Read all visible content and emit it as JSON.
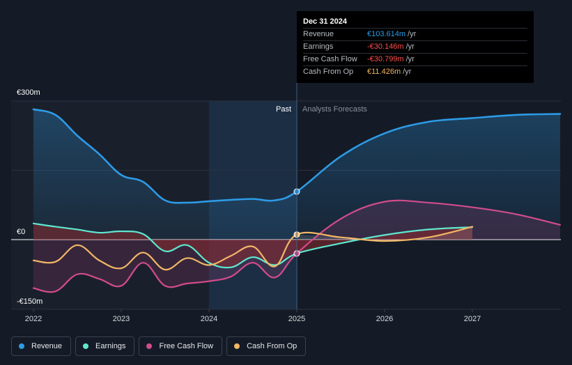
{
  "colors": {
    "background": "#151b26",
    "revenue": "#2d9be6",
    "earnings": "#5ee8cf",
    "fcf": "#d24c8c",
    "cfo": "#f2b766",
    "negative_fill": "#8b2a2d",
    "highlight": "#1e3d5c"
  },
  "tooltip": {
    "date": "Dec 31 2024",
    "rows": [
      {
        "name": "Revenue",
        "value": "€103.614m",
        "unit": "/yr",
        "color": "#2d9be6"
      },
      {
        "name": "Earnings",
        "value": "-€30.146m",
        "unit": "/yr",
        "color": "#ff4d4d"
      },
      {
        "name": "Free Cash Flow",
        "value": "-€30.799m",
        "unit": "/yr",
        "color": "#ff4d4d"
      },
      {
        "name": "Cash From Op",
        "value": "€11.426m",
        "unit": "/yr",
        "color": "#f2b766"
      }
    ]
  },
  "legend": [
    {
      "label": "Revenue",
      "color": "#2d9be6"
    },
    {
      "label": "Earnings",
      "color": "#5ee8cf"
    },
    {
      "label": "Free Cash Flow",
      "color": "#d24c8c"
    },
    {
      "label": "Cash From Op",
      "color": "#f2b766"
    }
  ],
  "chart_data": {
    "type": "line",
    "title": "",
    "unit": "€m",
    "y_ticks": [
      {
        "label": "€300m",
        "value": 300
      },
      {
        "label": "€0",
        "value": 0
      },
      {
        "label": "-€150m",
        "value": -150
      }
    ],
    "ylim": [
      -150,
      300
    ],
    "xlim": [
      2022,
      2028
    ],
    "x_ticks": [
      {
        "label": "2022",
        "value": 2022
      },
      {
        "label": "2023",
        "value": 2023
      },
      {
        "label": "2024",
        "value": 2024
      },
      {
        "label": "2025",
        "value": 2025
      },
      {
        "label": "2026",
        "value": 2026
      },
      {
        "label": "2027",
        "value": 2027
      }
    ],
    "divider_x": 2025,
    "highlight_range": [
      2024,
      2025
    ],
    "past_label": "Past",
    "forecast_label": "Analysts Forecasts",
    "series": [
      {
        "name": "Revenue",
        "key": "revenue",
        "marker_x": 2025,
        "points": [
          [
            2022,
            282
          ],
          [
            2022.25,
            270
          ],
          [
            2022.5,
            225
          ],
          [
            2022.75,
            185
          ],
          [
            2023,
            140
          ],
          [
            2023.25,
            125
          ],
          [
            2023.5,
            85
          ],
          [
            2023.75,
            80
          ],
          [
            2024,
            83
          ],
          [
            2024.25,
            86
          ],
          [
            2024.5,
            88
          ],
          [
            2024.75,
            85
          ],
          [
            2025,
            104
          ],
          [
            2025.5,
            180
          ],
          [
            2026,
            230
          ],
          [
            2026.5,
            255
          ],
          [
            2027,
            263
          ],
          [
            2027.5,
            270
          ],
          [
            2028,
            272
          ]
        ]
      },
      {
        "name": "Earnings",
        "key": "earnings",
        "marker_x": 2025,
        "points": [
          [
            2022,
            35
          ],
          [
            2022.25,
            28
          ],
          [
            2022.5,
            22
          ],
          [
            2022.75,
            15
          ],
          [
            2023,
            18
          ],
          [
            2023.25,
            12
          ],
          [
            2023.5,
            -25
          ],
          [
            2023.75,
            -12
          ],
          [
            2024,
            -50
          ],
          [
            2024.25,
            -60
          ],
          [
            2024.5,
            -38
          ],
          [
            2024.75,
            -55
          ],
          [
            2025,
            -30
          ],
          [
            2025.5,
            -8
          ],
          [
            2026,
            10
          ],
          [
            2026.5,
            22
          ],
          [
            2027,
            27
          ]
        ]
      },
      {
        "name": "Free Cash Flow",
        "key": "fcf",
        "marker_x": 2025,
        "points": [
          [
            2022,
            -105
          ],
          [
            2022.25,
            -112
          ],
          [
            2022.5,
            -75
          ],
          [
            2022.75,
            -85
          ],
          [
            2023,
            -100
          ],
          [
            2023.25,
            -50
          ],
          [
            2023.5,
            -100
          ],
          [
            2023.75,
            -95
          ],
          [
            2024,
            -90
          ],
          [
            2024.25,
            -80
          ],
          [
            2024.5,
            -50
          ],
          [
            2024.75,
            -82
          ],
          [
            2025,
            -30
          ],
          [
            2025.5,
            45
          ],
          [
            2026,
            82
          ],
          [
            2026.5,
            80
          ],
          [
            2027,
            70
          ],
          [
            2027.5,
            55
          ],
          [
            2028,
            32
          ]
        ]
      },
      {
        "name": "Cash From Op",
        "key": "cfo",
        "marker_x": 2025,
        "points": [
          [
            2022,
            -45
          ],
          [
            2022.25,
            -48
          ],
          [
            2022.5,
            -12
          ],
          [
            2022.75,
            -45
          ],
          [
            2023,
            -62
          ],
          [
            2023.25,
            -28
          ],
          [
            2023.5,
            -65
          ],
          [
            2023.75,
            -40
          ],
          [
            2024,
            -55
          ],
          [
            2024.25,
            -35
          ],
          [
            2024.5,
            -15
          ],
          [
            2024.75,
            -58
          ],
          [
            2025,
            11
          ],
          [
            2025.5,
            5
          ],
          [
            2026,
            -3
          ],
          [
            2026.5,
            5
          ],
          [
            2027,
            28
          ]
        ]
      }
    ]
  }
}
